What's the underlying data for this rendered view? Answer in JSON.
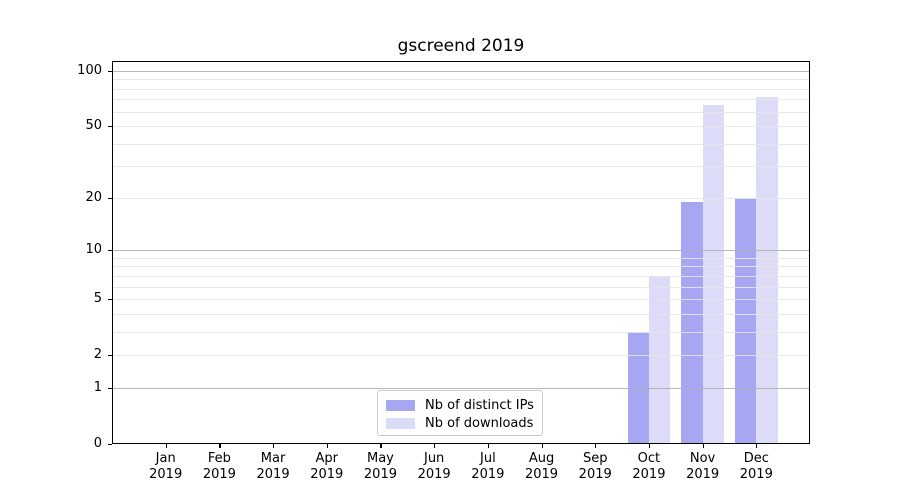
{
  "chart_data": {
    "type": "bar",
    "title": "gscreend 2019",
    "categories": [
      "Jan",
      "Feb",
      "Mar",
      "Apr",
      "May",
      "Jun",
      "Jul",
      "Aug",
      "Sep",
      "Oct",
      "Nov",
      "Dec"
    ],
    "x_tick_year": "2019",
    "series": [
      {
        "name": "Nb of distinct IPs",
        "color": "#a6a6f2",
        "values": [
          0,
          0,
          0,
          0,
          0,
          0,
          0,
          0,
          0,
          3,
          19,
          20
        ]
      },
      {
        "name": "Nb of downloads",
        "color": "#dcdcf8",
        "values": [
          0,
          0,
          0,
          0,
          0,
          0,
          0,
          0,
          0,
          7,
          65,
          72
        ]
      }
    ],
    "yscale": "log1p",
    "ylim": [
      0,
      113
    ],
    "yticks": [
      0,
      1,
      2,
      5,
      10,
      20,
      50,
      100
    ],
    "major_gridlines": [
      1,
      10,
      100
    ],
    "minor_gridlines": [
      2,
      3,
      4,
      5,
      6,
      7,
      8,
      9,
      20,
      30,
      40,
      50,
      60,
      70,
      80,
      90
    ],
    "grid": true,
    "legend_position": "lower center",
    "xlabel": "",
    "ylabel": ""
  },
  "colors": {
    "background": "#ffffff",
    "axis": "#000000",
    "tick_text": "#000000",
    "major_grid": "rgba(176,176,176,0.9)",
    "minor_grid": "rgba(229,229,229,0.9)",
    "legend_border": "#cccccc"
  }
}
